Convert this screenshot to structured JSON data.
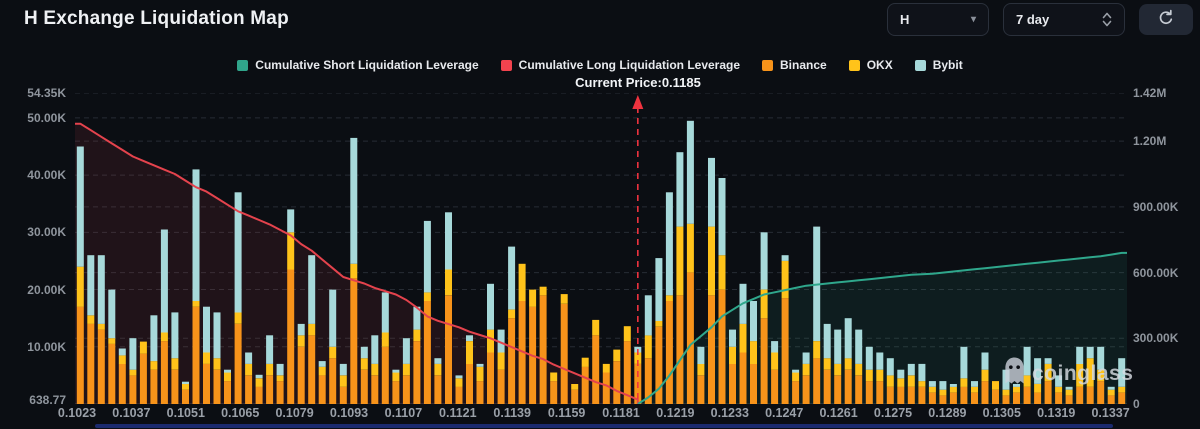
{
  "header": {
    "title": "H Exchange Liquidation Map"
  },
  "controls": {
    "symbol": "H",
    "range": "7 day"
  },
  "legend": [
    {
      "label": "Cumulative Short Liquidation Leverage",
      "color": "#30a58b"
    },
    {
      "label": "Cumulative Long Liquidation Leverage",
      "color": "#f2434e"
    },
    {
      "label": "Binance",
      "color": "#f7931a"
    },
    {
      "label": "OKX",
      "color": "#ffc31a"
    },
    {
      "label": "Bybit",
      "color": "#a7d9da"
    }
  ],
  "watermark": {
    "text": "coinglass"
  },
  "chart_data": {
    "type": "bar",
    "title": "H Exchange Liquidation Map",
    "x_ticks": [
      "0.1023",
      "0.1037",
      "0.1051",
      "0.1065",
      "0.1079",
      "0.1093",
      "0.1107",
      "0.1121",
      "0.1139",
      "0.1159",
      "0.1181",
      "0.1219",
      "0.1233",
      "0.1247",
      "0.1261",
      "0.1275",
      "0.1289",
      "0.1305",
      "0.1319",
      "0.1337"
    ],
    "left_axis": {
      "unit": "K",
      "max_k": 54.35,
      "ticks": [
        {
          "label": "54.35K",
          "k": 54.35
        },
        {
          "label": "50.00K",
          "k": 50
        },
        {
          "label": "40.00K",
          "k": 40
        },
        {
          "label": "30.00K",
          "k": 30
        },
        {
          "label": "20.00K",
          "k": 20
        },
        {
          "label": "10.00K",
          "k": 10
        },
        {
          "label": "638.77",
          "k": 0.63877
        }
      ]
    },
    "right_axis": {
      "unit": "M",
      "max_m": 1.42,
      "ticks": [
        {
          "label": "1.42M",
          "m": 1.42
        },
        {
          "label": "1.20M",
          "m": 1.2
        },
        {
          "label": "900.00K",
          "m": 0.9
        },
        {
          "label": "600.00K",
          "m": 0.6
        },
        {
          "label": "300.00K",
          "m": 0.3
        },
        {
          "label": "0",
          "m": 0
        }
      ]
    },
    "bar_series": [
      {
        "name": "Binance",
        "color": "#f7931a",
        "values_k": [
          17,
          14,
          13,
          10.5,
          7,
          5,
          8.8,
          6,
          11,
          6,
          2.5,
          17,
          7,
          6,
          4,
          14,
          5,
          3,
          5,
          4,
          23.5,
          10,
          12,
          5,
          8,
          3,
          22,
          6,
          5,
          10,
          4,
          5,
          11,
          18,
          5,
          19,
          3,
          7,
          4,
          9,
          6,
          15,
          18,
          17,
          19,
          4,
          17.5,
          2.5,
          6.5,
          12,
          5.5,
          7.5,
          11,
          7,
          8,
          13.5,
          18,
          19,
          23,
          5,
          19,
          20,
          7,
          9,
          7,
          15,
          6,
          18.5,
          4,
          5,
          8,
          6,
          5,
          6,
          5,
          4,
          4,
          3,
          3,
          3,
          3,
          2,
          1.5,
          2,
          3,
          2,
          4,
          2.5,
          1.5,
          2,
          3,
          2,
          4,
          2,
          1.5,
          3,
          3,
          4,
          1.5,
          2
        ]
      },
      {
        "name": "OKX",
        "color": "#ffc31a",
        "values_k": [
          7,
          1.5,
          1,
          1,
          1.5,
          1,
          2.1,
          1.5,
          1.5,
          2,
          1,
          1,
          2,
          2,
          1.5,
          2,
          2,
          1.5,
          2,
          1,
          6.5,
          2,
          2,
          1.5,
          2,
          2,
          2.5,
          2,
          2,
          2.5,
          1.5,
          2,
          2,
          1.5,
          2,
          4.5,
          1.5,
          4,
          2.5,
          4,
          3,
          1.5,
          6.5,
          3,
          1.5,
          1.5,
          1.7,
          1,
          1.6,
          2.7,
          1.5,
          2,
          2.6,
          2,
          4,
          1,
          1,
          12,
          8.5,
          2,
          12,
          6,
          3,
          5,
          4,
          5,
          3,
          6.5,
          1.5,
          2,
          3,
          2,
          2,
          2,
          2,
          2,
          2,
          2,
          1.5,
          2,
          1,
          1,
          1,
          1,
          1.5,
          1,
          2,
          1.5,
          1,
          1,
          2,
          1.5,
          3,
          1,
          1,
          4,
          5,
          2,
          1,
          1
        ]
      },
      {
        "name": "Bybit",
        "color": "#a7d9da",
        "values_k": [
          21,
          10.5,
          12,
          8.5,
          1.2,
          5.5,
          0,
          8,
          18,
          8,
          0.4,
          23,
          8,
          8,
          0.5,
          21,
          2,
          0.6,
          5,
          2,
          4,
          2,
          12,
          1,
          10,
          2,
          22,
          2,
          5,
          7,
          0.5,
          4.5,
          4,
          12.5,
          1,
          10,
          0.5,
          1,
          0.5,
          8,
          4,
          11,
          0,
          0,
          0,
          0,
          0,
          0,
          0,
          0,
          0,
          0,
          0,
          1,
          7,
          11,
          18,
          13,
          18,
          3,
          12,
          13.5,
          3,
          7,
          7,
          10,
          2,
          1,
          0.5,
          2,
          20,
          6,
          6,
          7,
          6,
          4,
          3,
          3,
          1.5,
          2,
          3,
          1,
          1.5,
          0.5,
          5.5,
          1,
          3,
          0,
          3.5,
          0.5,
          5,
          4.5,
          1,
          2,
          0.5,
          3,
          2,
          4,
          0.5,
          5
        ]
      }
    ],
    "line_series": [
      {
        "name": "Cumulative Long Liquidation Leverage",
        "axis": "right",
        "color": "#e4434d",
        "fill": "rgba(228,67,77,0.10)",
        "start_index": 0,
        "values_m": [
          1.28,
          1.25,
          1.22,
          1.19,
          1.16,
          1.13,
          1.11,
          1.09,
          1.07,
          1.05,
          1.02,
          0.99,
          0.97,
          0.94,
          0.91,
          0.88,
          0.86,
          0.84,
          0.82,
          0.795,
          0.77,
          0.73,
          0.7,
          0.66,
          0.62,
          0.58,
          0.565,
          0.55,
          0.53,
          0.515,
          0.5,
          0.475,
          0.44,
          0.4,
          0.38,
          0.365,
          0.35,
          0.33,
          0.315,
          0.3,
          0.28,
          0.26,
          0.24,
          0.22,
          0.205,
          0.18,
          0.16,
          0.14,
          0.12,
          0.1,
          0.085,
          0.06,
          0.04,
          0.02
        ]
      },
      {
        "name": "Cumulative Short Liquidation Leverage",
        "axis": "right",
        "color": "#2fa78c",
        "fill": "rgba(47,167,140,0.10)",
        "start_index": 54,
        "values_m": [
          0.03,
          0.07,
          0.13,
          0.2,
          0.27,
          0.31,
          0.35,
          0.4,
          0.43,
          0.46,
          0.48,
          0.5,
          0.51,
          0.52,
          0.53,
          0.54,
          0.545,
          0.55,
          0.555,
          0.56,
          0.565,
          0.57,
          0.575,
          0.58,
          0.585,
          0.59,
          0.592,
          0.595,
          0.6,
          0.605,
          0.61,
          0.615,
          0.62,
          0.625,
          0.63,
          0.635,
          0.64,
          0.645,
          0.65,
          0.655,
          0.66,
          0.665,
          0.67,
          0.675,
          0.682,
          0.69
        ]
      }
    ],
    "current_price": {
      "label": "Current Price:0.1185",
      "value": "0.1185",
      "x_fraction": 0.535,
      "color": "#ef333f"
    },
    "grid": {
      "color": "#272c34",
      "dash": "5 4"
    }
  }
}
